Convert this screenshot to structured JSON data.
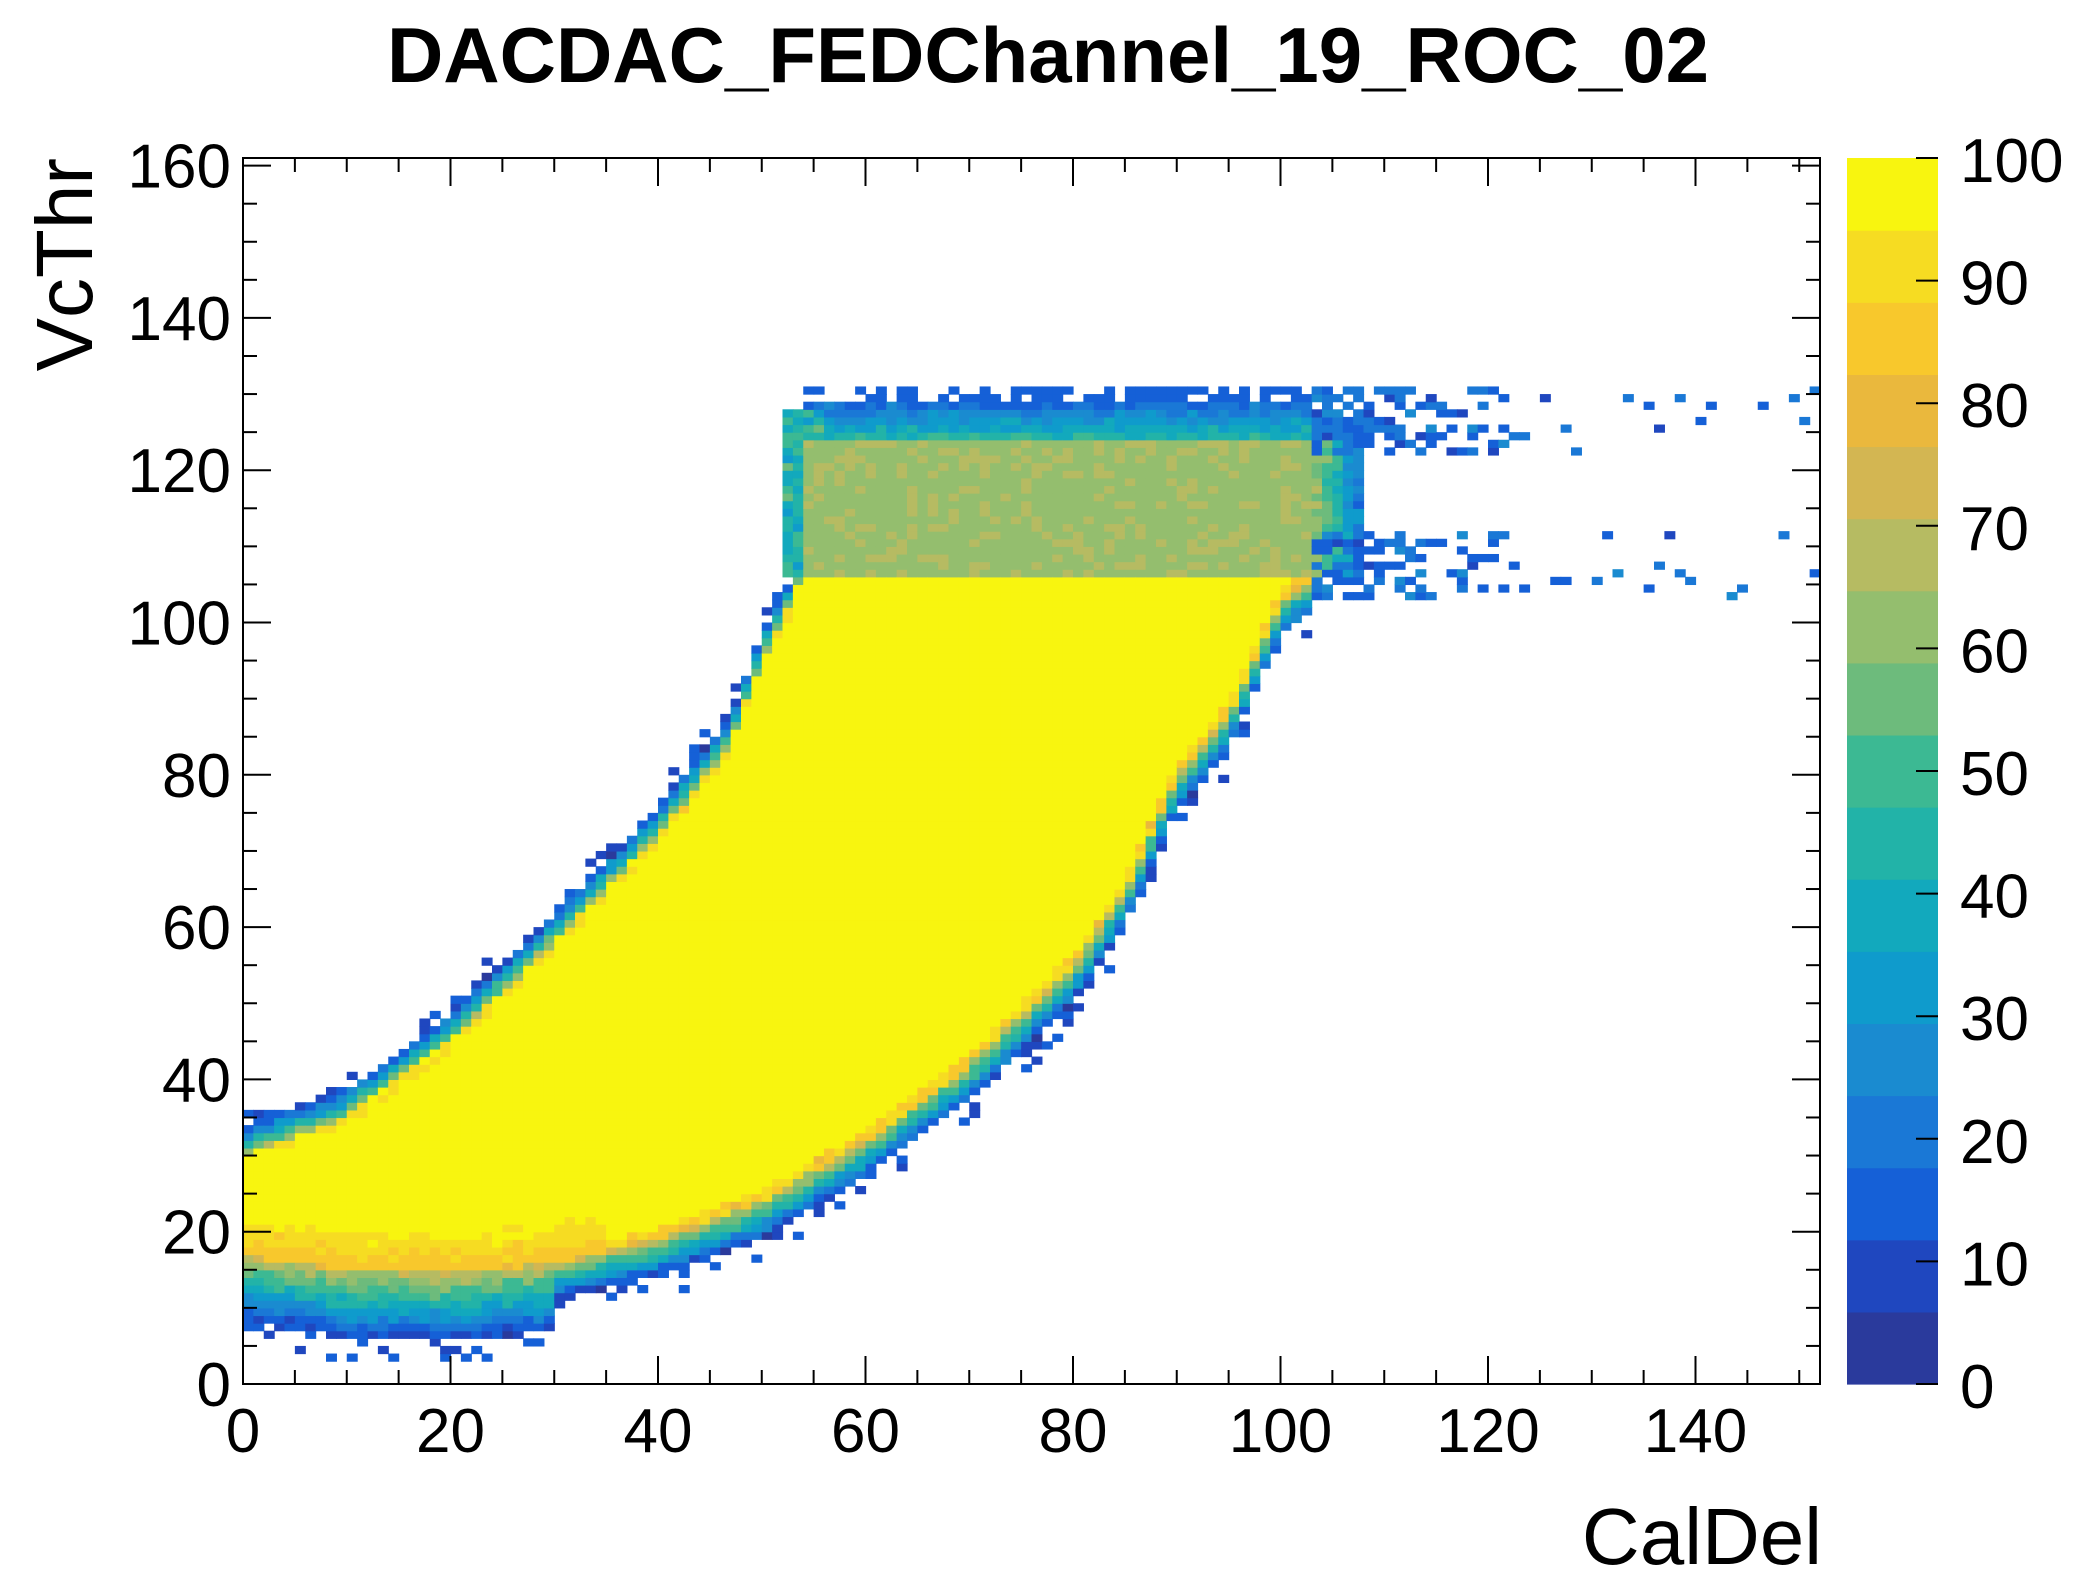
{
  "chart_data": {
    "type": "heatmap",
    "title": "DACDAC_FEDChannel_19_ROC_02",
    "xlabel": "CalDel",
    "ylabel": "VcThr",
    "xlim": [
      0,
      152
    ],
    "ylim": [
      0,
      161
    ],
    "x_ticks": [
      0,
      20,
      40,
      60,
      80,
      100,
      120,
      140
    ],
    "y_ticks": [
      0,
      20,
      40,
      60,
      80,
      100,
      120,
      140,
      160
    ],
    "z_ticks": [
      0,
      10,
      20,
      30,
      40,
      50,
      60,
      70,
      80,
      90,
      100
    ],
    "zlim": [
      0,
      100
    ],
    "colormap": "kBird",
    "colorbar_colors": [
      "#2a3a9c",
      "#1f47bf",
      "#1560d7",
      "#1a78d6",
      "#1a8bd0",
      "#0f9bcc",
      "#12a9bd",
      "#22b3a8",
      "#3cb993",
      "#6dbb7c",
      "#94be6e",
      "#b6bb62",
      "#d3b652",
      "#eab83d",
      "#f8c82c",
      "#f6dc22",
      "#f8f50f"
    ],
    "bin_width_x": 1,
    "bin_height_y": 1,
    "regions": [
      {
        "name": "main band",
        "value": 100,
        "description": "fully efficient band from CalDel 0-100, VcThr ~15-106"
      },
      {
        "name": "upper plateau",
        "value": 63,
        "description": "partial efficiency VcThr 106-128 for CalDel 54-107"
      },
      {
        "name": "low edge",
        "value": 80,
        "description": "orange edge near VcThr 15-25 at low CalDel"
      }
    ]
  }
}
